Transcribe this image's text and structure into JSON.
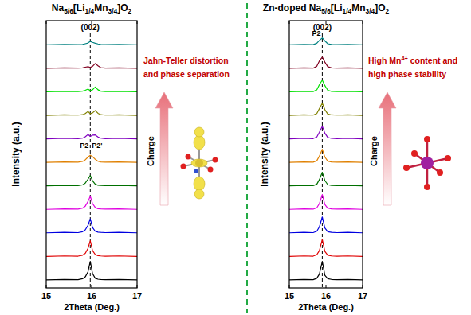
{
  "chart_data": [
    {
      "type": "line",
      "title": "Na5/6[Li1/4Mn3/4]O2",
      "x_label": "2Theta (Deg.)",
      "y_label": "Intensity (a.u.)",
      "x": [
        15.0,
        15.4,
        15.7,
        15.8,
        15.86,
        15.92,
        15.97,
        16.02,
        16.08,
        16.14,
        16.2,
        16.3,
        16.6,
        17.0
      ],
      "xlim": [
        15,
        17
      ],
      "xticks": [
        15,
        16,
        17
      ],
      "ylim": [
        0,
        11.6
      ],
      "tick_labels": "x",
      "peak_label": "(002)",
      "peak_position": 15.97,
      "phase_labels": [
        "P2",
        "P2'"
      ],
      "note": [
        "Jahn-Teller distortion",
        "and phase separation"
      ],
      "arrow_label": "Charge",
      "series": [
        {
          "color": "#000000",
          "values": [
            0.35,
            0.37,
            0.36,
            0.4,
            0.48,
            0.7,
            1.15,
            0.62,
            0.42,
            0.38,
            0.37,
            0.36,
            0.37,
            0.35
          ]
        },
        {
          "color": "#e00000",
          "values": [
            1.37,
            1.39,
            1.38,
            1.42,
            1.5,
            1.72,
            2.05,
            1.62,
            1.45,
            1.4,
            1.39,
            1.38,
            1.39,
            1.37
          ]
        },
        {
          "color": "#0000e0",
          "values": [
            2.39,
            2.41,
            2.4,
            2.44,
            2.52,
            2.72,
            3.0,
            2.62,
            2.46,
            2.42,
            2.41,
            2.4,
            2.41,
            2.39
          ]
        },
        {
          "color": "#e000e0",
          "values": [
            3.41,
            3.43,
            3.42,
            3.46,
            3.55,
            3.75,
            3.98,
            3.66,
            3.49,
            3.44,
            3.43,
            3.42,
            3.43,
            3.41
          ]
        },
        {
          "color": "#007000",
          "values": [
            4.43,
            4.45,
            4.44,
            4.47,
            4.55,
            4.72,
            4.88,
            4.65,
            4.5,
            4.46,
            4.45,
            4.44,
            4.45,
            4.43
          ]
        },
        {
          "color": "#e08000",
          "values": [
            5.45,
            5.47,
            5.46,
            5.49,
            5.56,
            5.68,
            5.76,
            5.7,
            5.58,
            5.5,
            5.47,
            5.46,
            5.47,
            5.45
          ]
        },
        {
          "color": "#8000c0",
          "values": [
            6.47,
            6.49,
            6.48,
            6.5,
            6.56,
            6.66,
            6.58,
            6.63,
            6.64,
            6.55,
            6.5,
            6.48,
            6.49,
            6.47
          ]
        },
        {
          "color": "#808000",
          "values": [
            7.49,
            7.51,
            7.5,
            7.52,
            7.57,
            7.66,
            7.56,
            7.6,
            7.7,
            7.58,
            7.52,
            7.5,
            7.51,
            7.49
          ]
        },
        {
          "color": "#00e000",
          "values": [
            8.51,
            8.53,
            8.52,
            8.54,
            8.58,
            8.63,
            8.56,
            8.6,
            8.72,
            8.6,
            8.54,
            8.52,
            8.53,
            8.51
          ]
        },
        {
          "color": "#800020",
          "values": [
            9.53,
            9.55,
            9.54,
            9.55,
            9.58,
            9.6,
            9.57,
            9.62,
            9.74,
            9.64,
            9.56,
            9.54,
            9.55,
            9.53
          ]
        },
        {
          "color": "#008080",
          "values": [
            10.55,
            10.57,
            10.56,
            10.57,
            10.6,
            10.63,
            10.7,
            10.66,
            10.62,
            10.59,
            10.57,
            10.56,
            10.57,
            10.55
          ]
        }
      ]
    },
    {
      "type": "line",
      "title": "Zn-doped Na5/6[Li1/4Mn3/4]O2",
      "x_label": "2Theta (Deg.)",
      "y_label": "Intensity (a.u.)",
      "x": [
        15.0,
        15.4,
        15.65,
        15.75,
        15.82,
        15.9,
        15.97,
        16.05,
        16.15,
        16.3,
        16.6,
        17.0
      ],
      "xlim": [
        15,
        17
      ],
      "xticks": [
        15,
        16,
        17
      ],
      "ylim": [
        0,
        11.6
      ],
      "tick_labels": "x",
      "peak_label": "(002)",
      "peak_position": 15.9,
      "phase_labels": [
        "P2"
      ],
      "note": [
        "High Mn4+ content and",
        "high phase stability"
      ],
      "arrow_label": "Charge",
      "series": [
        {
          "color": "#000000",
          "values": [
            0.35,
            0.37,
            0.36,
            0.42,
            0.6,
            1.15,
            0.55,
            0.4,
            0.37,
            0.36,
            0.37,
            0.35
          ]
        },
        {
          "color": "#e00000",
          "values": [
            1.37,
            1.39,
            1.38,
            1.44,
            1.62,
            2.1,
            1.58,
            1.42,
            1.39,
            1.38,
            1.39,
            1.37
          ]
        },
        {
          "color": "#0000e0",
          "values": [
            2.39,
            2.41,
            2.4,
            2.46,
            2.65,
            3.08,
            2.6,
            2.44,
            2.41,
            2.4,
            2.41,
            2.39
          ]
        },
        {
          "color": "#e000e0",
          "values": [
            3.41,
            3.43,
            3.42,
            3.48,
            3.66,
            4.05,
            3.62,
            3.46,
            3.43,
            3.42,
            3.43,
            3.41
          ]
        },
        {
          "color": "#007000",
          "values": [
            4.43,
            4.45,
            4.44,
            4.5,
            4.7,
            5.02,
            4.66,
            4.48,
            4.45,
            4.44,
            4.45,
            4.43
          ]
        },
        {
          "color": "#e08000",
          "values": [
            5.45,
            5.47,
            5.46,
            5.52,
            5.72,
            6.02,
            5.68,
            5.5,
            5.47,
            5.46,
            5.47,
            5.45
          ]
        },
        {
          "color": "#8000c0",
          "values": [
            6.47,
            6.49,
            6.48,
            6.55,
            6.76,
            7.02,
            6.72,
            6.53,
            6.49,
            6.48,
            6.49,
            6.47
          ]
        },
        {
          "color": "#808000",
          "values": [
            7.49,
            7.51,
            7.5,
            7.57,
            7.78,
            8.02,
            7.74,
            7.55,
            7.51,
            7.5,
            7.51,
            7.49
          ]
        },
        {
          "color": "#00e000",
          "values": [
            8.51,
            8.53,
            8.52,
            8.6,
            8.82,
            9.02,
            8.78,
            8.58,
            8.53,
            8.52,
            8.53,
            8.51
          ]
        },
        {
          "color": "#800020",
          "values": [
            9.53,
            9.55,
            9.54,
            9.62,
            9.85,
            10.02,
            9.8,
            9.6,
            9.55,
            9.54,
            9.55,
            9.53
          ]
        },
        {
          "color": "#008080",
          "values": [
            10.55,
            10.57,
            10.56,
            10.62,
            10.74,
            10.85,
            10.72,
            10.6,
            10.57,
            10.56,
            10.57,
            10.55
          ]
        }
      ]
    }
  ]
}
